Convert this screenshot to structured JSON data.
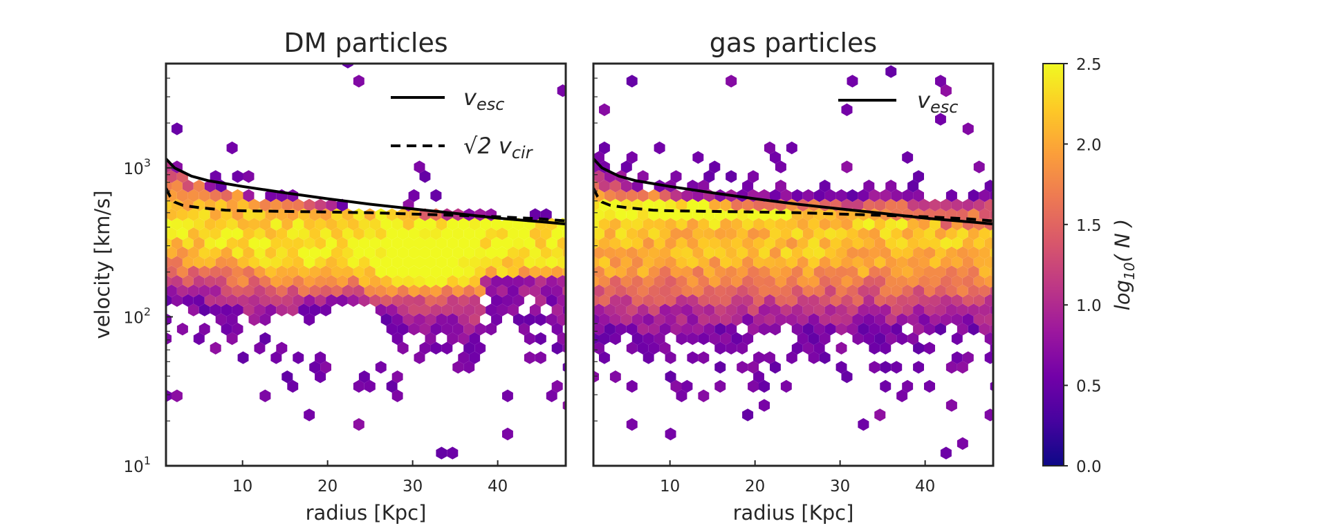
{
  "chart_data": [
    {
      "type": "hexbin",
      "title": "DM particles",
      "xlabel": "radius [Kpc]",
      "ylabel": "velocity [km/s]",
      "xlim": [
        1,
        48
      ],
      "ylim_log10": [
        1,
        3.7
      ],
      "yscale": "log",
      "xticks": [
        "10",
        "20",
        "30",
        "40"
      ],
      "xtick_values": [
        10,
        20,
        30,
        40
      ],
      "yticks": [
        {
          "base": "10",
          "exp": "1",
          "value": 10
        },
        {
          "base": "10",
          "exp": "2",
          "value": 100
        },
        {
          "base": "10",
          "exp": "3",
          "value": 1000
        }
      ],
      "legend": [
        {
          "label_main": "v",
          "label_sub": "esc",
          "style": "solid"
        },
        {
          "label_main": "√2 v",
          "label_sub": "cir",
          "style": "dashed"
        }
      ],
      "series": [
        {
          "name": "v_esc",
          "style": "solid",
          "x": [
            1,
            2,
            4,
            6,
            10,
            15,
            20,
            25,
            30,
            35,
            40,
            45,
            48
          ],
          "y": [
            1150,
            1000,
            880,
            820,
            750,
            680,
            620,
            570,
            530,
            495,
            460,
            435,
            420
          ]
        },
        {
          "name": "sqrt2_v_cir",
          "style": "dashed",
          "x": [
            1,
            1.5,
            2,
            3,
            5,
            8,
            10,
            15,
            20,
            25,
            30,
            35,
            40,
            45,
            48
          ],
          "y": [
            730,
            640,
            590,
            560,
            540,
            520,
            515,
            510,
            505,
            500,
            490,
            480,
            470,
            455,
            440
          ]
        }
      ]
    },
    {
      "type": "hexbin",
      "title": "gas particles",
      "xlabel": "radius [Kpc]",
      "xlim": [
        1,
        48
      ],
      "ylim_log10": [
        1,
        3.7
      ],
      "yscale": "log",
      "xticks": [
        "10",
        "20",
        "30",
        "40"
      ],
      "xtick_values": [
        10,
        20,
        30,
        40
      ],
      "legend": [
        {
          "label_main": "v",
          "label_sub": "esc",
          "style": "solid"
        }
      ],
      "series": [
        {
          "name": "v_esc",
          "style": "solid",
          "x": [
            1,
            2,
            4,
            6,
            10,
            15,
            20,
            25,
            30,
            35,
            40,
            45,
            48
          ],
          "y": [
            1150,
            1000,
            880,
            820,
            750,
            680,
            620,
            570,
            530,
            495,
            460,
            435,
            420
          ]
        },
        {
          "name": "sqrt2_v_cir",
          "style": "dashed",
          "x": [
            1,
            1.5,
            2,
            3,
            5,
            8,
            10,
            15,
            20,
            25,
            30,
            35,
            40,
            45,
            48
          ],
          "y": [
            730,
            640,
            590,
            560,
            540,
            520,
            515,
            510,
            505,
            500,
            490,
            480,
            470,
            455,
            440
          ]
        }
      ]
    },
    {
      "type": "colorbar",
      "colormap": "plasma",
      "label_main": "log",
      "label_sub": "10",
      "label_tail": "( N )",
      "range": [
        0.0,
        2.5
      ],
      "ticks": [
        "0.0",
        "0.5",
        "1.0",
        "1.5",
        "2.0",
        "2.5"
      ],
      "tick_values": [
        0.0,
        0.5,
        1.0,
        1.5,
        2.0,
        2.5
      ]
    }
  ],
  "colors": {
    "plasma": [
      "#0d0887",
      "#46039f",
      "#7201a8",
      "#9c179e",
      "#bd3786",
      "#d8576b",
      "#ed7953",
      "#fb9f3a",
      "#fdca26",
      "#f0f921"
    ],
    "axis": "#262626",
    "line": "#000000"
  }
}
